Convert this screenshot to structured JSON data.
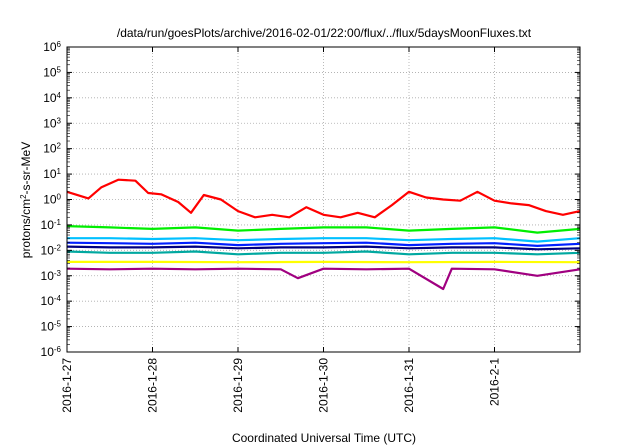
{
  "chart_data": {
    "type": "line",
    "title": "/data/run/goesPlots/archive/2016-02-01/22:00/flux/../flux/5daysMoonFluxes.txt",
    "xlabel": "Coordinated Universal Time (UTC)",
    "ylabel": "protons/cm²-s-sr-MeV",
    "ylabel_parts": {
      "before": "protons/cm",
      "sup": "2",
      "after": "-s-sr-MeV"
    },
    "x_ticks": [
      "2016-1-27",
      "2016-1-28",
      "2016-1-29",
      "2016-1-30",
      "2016-1-31",
      "2016-2-1"
    ],
    "xlim_days": [
      0,
      6
    ],
    "yscale": "log",
    "ylim": [
      1e-06,
      1000000.0
    ],
    "y_ticks": [
      {
        "base": "10",
        "exp": "-6"
      },
      {
        "base": "10",
        "exp": "-5"
      },
      {
        "base": "10",
        "exp": "-4"
      },
      {
        "base": "10",
        "exp": "-3"
      },
      {
        "base": "10",
        "exp": "-2"
      },
      {
        "base": "10",
        "exp": "-1"
      },
      {
        "base": "10",
        "exp": "0"
      },
      {
        "base": "10",
        "exp": "1"
      },
      {
        "base": "10",
        "exp": "2"
      },
      {
        "base": "10",
        "exp": "3"
      },
      {
        "base": "10",
        "exp": "4"
      },
      {
        "base": "10",
        "exp": "5"
      },
      {
        "base": "10",
        "exp": "6"
      }
    ],
    "grid": true,
    "series": [
      {
        "color": "#ff0000",
        "x": [
          0,
          0.25,
          0.4,
          0.6,
          0.8,
          0.95,
          1.1,
          1.3,
          1.45,
          1.6,
          1.8,
          2.0,
          2.2,
          2.4,
          2.6,
          2.8,
          3.0,
          3.2,
          3.4,
          3.6,
          3.8,
          4.0,
          4.2,
          4.4,
          4.6,
          4.8,
          5.0,
          5.2,
          5.4,
          5.6,
          5.8,
          6.0
        ],
        "values": [
          2.0,
          1.1,
          3.0,
          6.0,
          5.5,
          1.8,
          1.6,
          0.8,
          0.3,
          1.5,
          1.0,
          0.35,
          0.2,
          0.25,
          0.2,
          0.5,
          0.25,
          0.2,
          0.3,
          0.2,
          0.6,
          2.0,
          1.2,
          1.0,
          0.9,
          2.0,
          0.9,
          0.7,
          0.6,
          0.35,
          0.25,
          0.35
        ]
      },
      {
        "color": "#00ee00",
        "x": [
          0,
          0.5,
          1.0,
          1.5,
          2.0,
          2.5,
          3.0,
          3.5,
          4.0,
          4.5,
          5.0,
          5.5,
          6.0
        ],
        "values": [
          0.09,
          0.08,
          0.07,
          0.08,
          0.06,
          0.07,
          0.08,
          0.08,
          0.06,
          0.07,
          0.08,
          0.05,
          0.07
        ]
      },
      {
        "color": "#00c0ff",
        "x": [
          0,
          0.5,
          1.0,
          1.5,
          2.0,
          2.5,
          3.0,
          3.5,
          4.0,
          4.5,
          5.0,
          5.5,
          6.0
        ],
        "values": [
          0.03,
          0.03,
          0.028,
          0.03,
          0.025,
          0.028,
          0.03,
          0.03,
          0.025,
          0.028,
          0.03,
          0.022,
          0.03
        ]
      },
      {
        "color": "#0020ff",
        "x": [
          0,
          0.5,
          1.0,
          1.5,
          2.0,
          2.5,
          3.0,
          3.5,
          4.0,
          4.5,
          5.0,
          5.5,
          6.0
        ],
        "values": [
          0.02,
          0.019,
          0.018,
          0.02,
          0.016,
          0.018,
          0.019,
          0.02,
          0.016,
          0.018,
          0.019,
          0.015,
          0.018
        ]
      },
      {
        "color": "#000080",
        "x": [
          0,
          0.5,
          1.0,
          1.5,
          2.0,
          2.5,
          3.0,
          3.5,
          4.0,
          4.5,
          5.0,
          5.5,
          6.0
        ],
        "values": [
          0.014,
          0.013,
          0.013,
          0.014,
          0.012,
          0.013,
          0.013,
          0.014,
          0.012,
          0.013,
          0.013,
          0.011,
          0.012
        ]
      },
      {
        "color": "#00a8a0",
        "x": [
          0,
          0.5,
          1.0,
          1.5,
          2.0,
          2.5,
          3.0,
          3.5,
          4.0,
          4.5,
          5.0,
          5.5,
          6.0
        ],
        "values": [
          0.009,
          0.008,
          0.008,
          0.009,
          0.007,
          0.008,
          0.008,
          0.009,
          0.007,
          0.008,
          0.008,
          0.007,
          0.008
        ]
      },
      {
        "color": "#ffff00",
        "x": [
          0,
          1.0,
          2.0,
          3.0,
          4.0,
          5.0,
          6.0
        ],
        "values": [
          0.0035,
          0.0035,
          0.0034,
          0.0035,
          0.0034,
          0.0035,
          0.0034
        ]
      },
      {
        "color": "#a00080",
        "x": [
          0,
          0.5,
          1.0,
          1.5,
          2.0,
          2.5,
          2.7,
          3.0,
          3.5,
          4.0,
          4.4,
          4.5,
          5.0,
          5.5,
          6.0
        ],
        "values": [
          0.0019,
          0.0018,
          0.0019,
          0.0018,
          0.0019,
          0.0018,
          0.0008,
          0.0019,
          0.0018,
          0.0019,
          0.0003,
          0.0019,
          0.0018,
          0.001,
          0.0018
        ]
      }
    ]
  }
}
